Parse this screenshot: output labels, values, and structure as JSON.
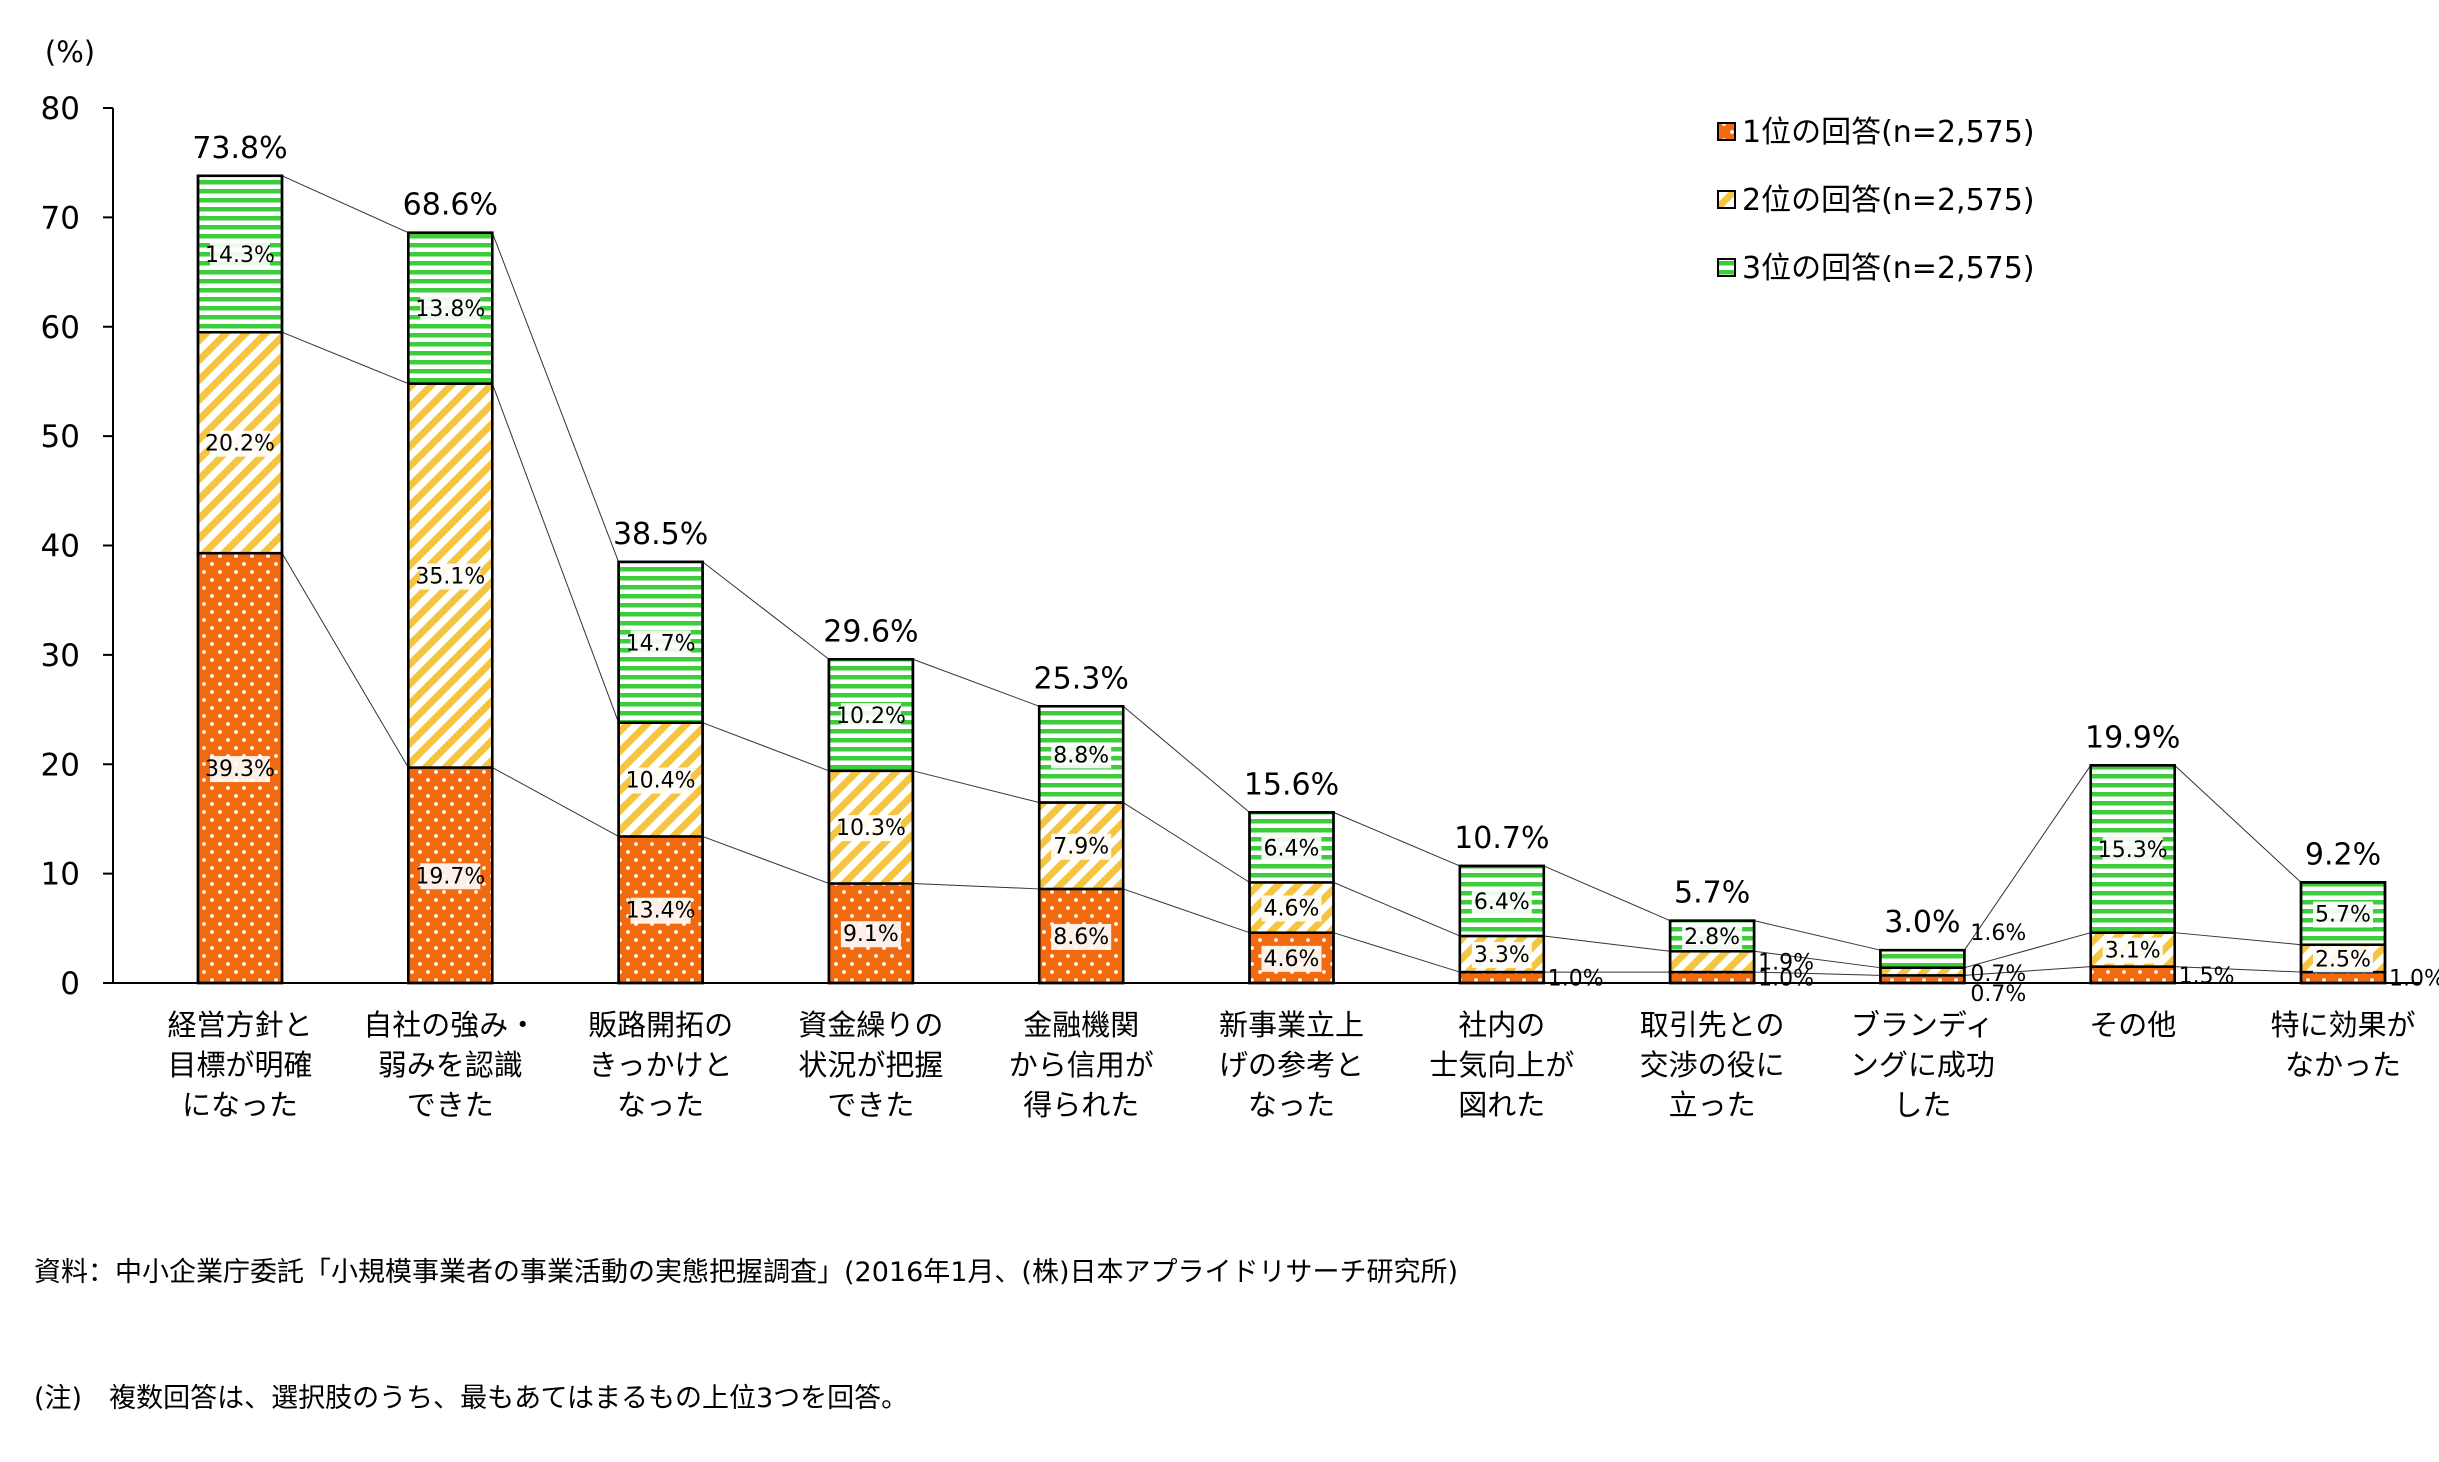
{
  "chart_data": {
    "type": "bar",
    "stacked": true,
    "unit_label": "(%)",
    "ylim": [
      0,
      80
    ],
    "yticks": [
      0,
      10,
      20,
      30,
      40,
      50,
      60,
      70,
      80
    ],
    "categories": [
      [
        "経営方針と",
        "目標が明確",
        "になった"
      ],
      [
        "自社の強み・",
        "弱みを認識",
        "できた"
      ],
      [
        "販路開拓の",
        "きっかけと",
        "なった"
      ],
      [
        "資金繰りの",
        "状況が把握",
        "できた"
      ],
      [
        "金融機関",
        "から信用が",
        "得られた"
      ],
      [
        "新事業立上",
        "げの参考と",
        "なった"
      ],
      [
        "社内の",
        "士気向上が",
        "図れた"
      ],
      [
        "取引先との",
        "交渉の役に",
        "立った"
      ],
      [
        "ブランディ",
        "ングに成功",
        "した"
      ],
      [
        "その他"
      ],
      [
        "特に効果が",
        "なかった"
      ]
    ],
    "series": [
      {
        "name": "1位の回答(n=2,575)",
        "pattern": "dots",
        "color": "#f26a10",
        "values": [
          39.3,
          19.7,
          13.4,
          9.1,
          8.6,
          4.6,
          1.0,
          1.0,
          0.7,
          1.5,
          1.0
        ],
        "labels": [
          "39.3%",
          "19.7%",
          "13.4%",
          "9.1%",
          "8.6%",
          "4.6%",
          "1.0%",
          "1.0%",
          "0.7%",
          "1.5%",
          "1.0%"
        ]
      },
      {
        "name": "2位の回答(n=2,575)",
        "pattern": "diagonal",
        "color": "#f5c542",
        "values": [
          20.2,
          35.1,
          10.4,
          10.3,
          7.9,
          4.6,
          3.3,
          1.9,
          0.7,
          3.1,
          2.5
        ],
        "labels": [
          "20.2%",
          "35.1%",
          "10.4%",
          "10.3%",
          "7.9%",
          "4.6%",
          "3.3%",
          "1.9%",
          "0.7%",
          "3.1%",
          "2.5%"
        ]
      },
      {
        "name": "3位の回答(n=2,575)",
        "pattern": "horizontal",
        "color": "#3ccc3c",
        "values": [
          14.3,
          13.8,
          14.7,
          10.2,
          8.8,
          6.4,
          6.4,
          2.8,
          1.6,
          15.3,
          5.7
        ],
        "labels": [
          "14.3%",
          "13.8%",
          "14.7%",
          "10.2%",
          "8.8%",
          "6.4%",
          "6.4%",
          "2.8%",
          "1.6%",
          "15.3%",
          "5.7%"
        ]
      }
    ],
    "totals": [
      73.8,
      68.6,
      38.5,
      29.6,
      25.3,
      15.6,
      10.7,
      5.7,
      3.0,
      19.9,
      9.2
    ],
    "total_labels": [
      "73.8%",
      "68.6%",
      "38.5%",
      "29.6%",
      "25.3%",
      "15.6%",
      "10.7%",
      "5.7%",
      "3.0%",
      "19.9%",
      "9.2%"
    ],
    "legend_position": "top-right"
  },
  "notes": {
    "source": "資料：中小企業庁委託「小規模事業者の事業活動の実態把握調査」(2016年1月、(株)日本アプライドリサーチ研究所)",
    "note": "(注)　複数回答は、選択肢のうち、最もあてはまるもの上位3つを回答。"
  }
}
